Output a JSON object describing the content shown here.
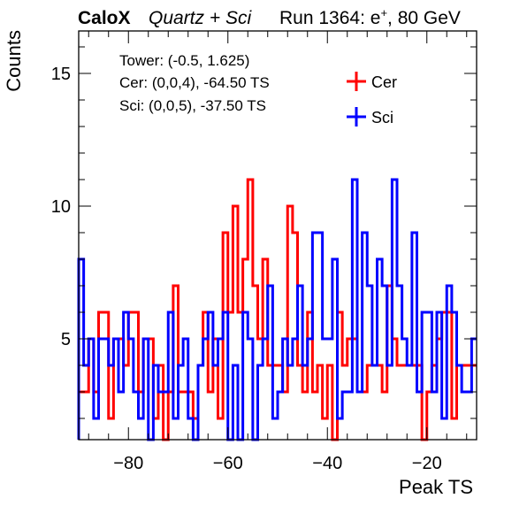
{
  "header": {
    "brand": "CaloX",
    "detector": "Quartz + Sci",
    "run": "Run 1364: e",
    "particle_sup": "+",
    "energy": ", 80 GeV"
  },
  "annotations": {
    "tower": "Tower: (-0.5, 1.625)",
    "cer_info": "Cer: (0,0,4), -64.50 TS",
    "sci_info": "Sci: (0,0,5), -37.50 TS"
  },
  "chart_data": {
    "type": "histogram",
    "xlabel": "Peak TS",
    "ylabel": "Counts",
    "xlim": [
      -90,
      -10
    ],
    "ylim": [
      1.2,
      16.6
    ],
    "bin_width": 1,
    "xticks": [
      -80,
      -60,
      -40,
      -20
    ],
    "xtick_labels": [
      "−80",
      "−60",
      "−40",
      "−20"
    ],
    "yticks": [
      5,
      10,
      15
    ],
    "ytick_labels": [
      "5",
      "10",
      "15"
    ],
    "legend_position": "top-right",
    "series": [
      {
        "name": "Cer",
        "color": "#ff0000",
        "bin_edges_start": -90,
        "values": [
          3,
          3,
          5,
          3,
          6,
          6,
          2,
          5,
          5,
          4,
          6,
          6,
          3,
          5,
          5,
          2,
          4,
          1,
          3,
          7,
          3,
          3,
          3,
          2,
          4,
          6,
          3,
          5,
          2,
          9,
          6,
          10,
          6,
          8,
          11,
          7,
          5,
          8,
          4,
          4,
          4,
          3,
          10,
          9,
          4,
          3,
          6,
          3,
          4,
          2,
          4,
          1,
          6,
          4,
          5,
          5,
          3,
          3,
          4,
          4,
          4,
          3,
          7,
          5,
          4,
          4,
          4,
          4,
          4,
          1,
          3,
          4,
          5,
          6,
          6,
          2,
          4,
          4,
          4,
          4
        ]
      },
      {
        "name": "Sci",
        "color": "#0000ff",
        "bin_edges_start": -90,
        "values": [
          8,
          4,
          5,
          2,
          5,
          5,
          4,
          5,
          3,
          6,
          5,
          3,
          2,
          5,
          1,
          4,
          3,
          3,
          6,
          2,
          4,
          5,
          2,
          1,
          4,
          5,
          6,
          4,
          5,
          6,
          1,
          4,
          1,
          6,
          5,
          1,
          4,
          5,
          7,
          2,
          3,
          5,
          4,
          5,
          7,
          4,
          5,
          9,
          9,
          5,
          5,
          8,
          2,
          3,
          3,
          11,
          3,
          9,
          7,
          4,
          8,
          7,
          4,
          11,
          7,
          5,
          4,
          9,
          3,
          6,
          6,
          3,
          6,
          2,
          7,
          6,
          4,
          3,
          3,
          5
        ]
      }
    ]
  }
}
